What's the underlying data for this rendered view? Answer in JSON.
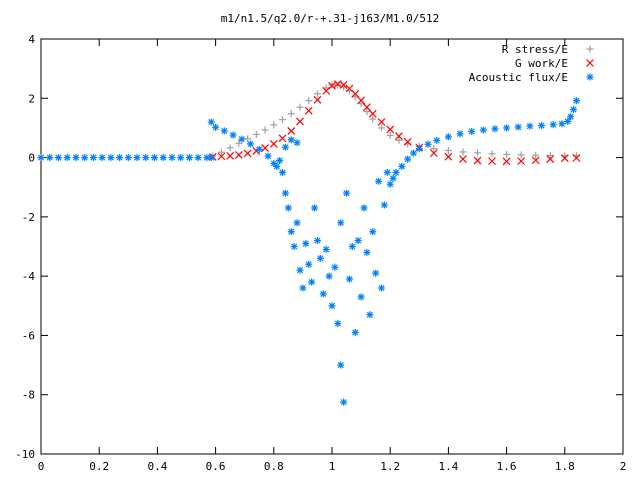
{
  "chart_data": {
    "type": "scatter",
    "title": "m1/n1.5/q2.0/r-+.31-j163/M1.0/512",
    "xlabel": "",
    "ylabel": "",
    "xlim": [
      0,
      2
    ],
    "ylim": [
      -10,
      4
    ],
    "x_ticks": [
      "0",
      "0.2",
      "0.4",
      "0.6",
      "0.8",
      "1",
      "1.2",
      "1.4",
      "1.6",
      "1.8",
      "2"
    ],
    "y_ticks": [
      "4",
      "2",
      "0",
      "-2",
      "-4",
      "-6",
      "-8",
      "-10"
    ],
    "grid": false,
    "legend_position": "top-right",
    "series": [
      {
        "name": "R stress/E",
        "marker": "+",
        "color": "#a0a0a0",
        "points": [
          [
            0.59,
            0.05
          ],
          [
            0.62,
            0.18
          ],
          [
            0.65,
            0.33
          ],
          [
            0.68,
            0.48
          ],
          [
            0.71,
            0.63
          ],
          [
            0.74,
            0.78
          ],
          [
            0.77,
            0.93
          ],
          [
            0.8,
            1.1
          ],
          [
            0.83,
            1.28
          ],
          [
            0.86,
            1.48
          ],
          [
            0.89,
            1.7
          ],
          [
            0.92,
            1.92
          ],
          [
            0.95,
            2.15
          ],
          [
            0.98,
            2.35
          ],
          [
            1.0,
            2.45
          ],
          [
            1.02,
            2.45
          ],
          [
            1.04,
            2.38
          ],
          [
            1.06,
            2.25
          ],
          [
            1.08,
            2.05
          ],
          [
            1.1,
            1.82
          ],
          [
            1.12,
            1.55
          ],
          [
            1.14,
            1.3
          ],
          [
            1.17,
            1.0
          ],
          [
            1.2,
            0.75
          ],
          [
            1.23,
            0.58
          ],
          [
            1.26,
            0.46
          ],
          [
            1.3,
            0.38
          ],
          [
            1.35,
            0.3
          ],
          [
            1.4,
            0.24
          ],
          [
            1.45,
            0.19
          ],
          [
            1.5,
            0.16
          ],
          [
            1.55,
            0.13
          ],
          [
            1.6,
            0.11
          ],
          [
            1.65,
            0.09
          ],
          [
            1.7,
            0.08
          ],
          [
            1.75,
            0.07
          ],
          [
            1.8,
            0.06
          ],
          [
            1.84,
            0.06
          ]
        ]
      },
      {
        "name": "G work/E",
        "marker": "x",
        "color": "#ff0000",
        "points": [
          [
            0.59,
            0.02
          ],
          [
            0.62,
            0.04
          ],
          [
            0.65,
            0.06
          ],
          [
            0.68,
            0.09
          ],
          [
            0.71,
            0.14
          ],
          [
            0.74,
            0.22
          ],
          [
            0.77,
            0.32
          ],
          [
            0.8,
            0.46
          ],
          [
            0.83,
            0.65
          ],
          [
            0.86,
            0.9
          ],
          [
            0.89,
            1.22
          ],
          [
            0.92,
            1.58
          ],
          [
            0.95,
            1.95
          ],
          [
            0.98,
            2.25
          ],
          [
            1.0,
            2.42
          ],
          [
            1.02,
            2.48
          ],
          [
            1.04,
            2.45
          ],
          [
            1.06,
            2.33
          ],
          [
            1.08,
            2.15
          ],
          [
            1.1,
            1.93
          ],
          [
            1.12,
            1.7
          ],
          [
            1.14,
            1.48
          ],
          [
            1.17,
            1.2
          ],
          [
            1.2,
            0.95
          ],
          [
            1.23,
            0.72
          ],
          [
            1.26,
            0.53
          ],
          [
            1.3,
            0.34
          ],
          [
            1.35,
            0.15
          ],
          [
            1.4,
            0.03
          ],
          [
            1.45,
            -0.05
          ],
          [
            1.5,
            -0.1
          ],
          [
            1.55,
            -0.12
          ],
          [
            1.6,
            -0.13
          ],
          [
            1.65,
            -0.12
          ],
          [
            1.7,
            -0.09
          ],
          [
            1.75,
            -0.05
          ],
          [
            1.8,
            -0.02
          ],
          [
            1.84,
            -0.01
          ]
        ]
      },
      {
        "name": "Acoustic flux/E",
        "marker": "*",
        "color": "#0080ff",
        "points": [
          [
            0.0,
            0.0
          ],
          [
            0.03,
            0.0
          ],
          [
            0.06,
            0.0
          ],
          [
            0.09,
            0.0
          ],
          [
            0.12,
            0.0
          ],
          [
            0.15,
            0.0
          ],
          [
            0.18,
            0.0
          ],
          [
            0.21,
            0.0
          ],
          [
            0.24,
            0.0
          ],
          [
            0.27,
            0.0
          ],
          [
            0.3,
            0.0
          ],
          [
            0.33,
            0.0
          ],
          [
            0.36,
            0.0
          ],
          [
            0.39,
            0.0
          ],
          [
            0.42,
            0.0
          ],
          [
            0.45,
            0.0
          ],
          [
            0.48,
            0.0
          ],
          [
            0.51,
            0.0
          ],
          [
            0.54,
            0.0
          ],
          [
            0.57,
            0.0
          ],
          [
            0.585,
            0.0
          ],
          [
            0.585,
            1.2
          ],
          [
            0.6,
            1.02
          ],
          [
            0.63,
            0.9
          ],
          [
            0.66,
            0.76
          ],
          [
            0.69,
            0.62
          ],
          [
            0.72,
            0.46
          ],
          [
            0.75,
            0.28
          ],
          [
            0.78,
            0.05
          ],
          [
            0.8,
            -0.2
          ],
          [
            0.81,
            -0.3
          ],
          [
            0.82,
            -0.1
          ],
          [
            0.84,
            0.35
          ],
          [
            0.86,
            0.6
          ],
          [
            0.88,
            0.5
          ],
          [
            0.83,
            -0.5
          ],
          [
            0.84,
            -1.2
          ],
          [
            0.85,
            -1.7
          ],
          [
            0.86,
            -2.5
          ],
          [
            0.87,
            -3.0
          ],
          [
            0.88,
            -2.2
          ],
          [
            0.89,
            -3.8
          ],
          [
            0.9,
            -4.4
          ],
          [
            0.91,
            -2.9
          ],
          [
            0.92,
            -3.6
          ],
          [
            0.93,
            -4.2
          ],
          [
            0.94,
            -1.7
          ],
          [
            0.95,
            -2.8
          ],
          [
            0.96,
            -3.4
          ],
          [
            0.97,
            -4.6
          ],
          [
            0.98,
            -3.1
          ],
          [
            0.99,
            -4.0
          ],
          [
            1.0,
            -5.0
          ],
          [
            1.01,
            -3.7
          ],
          [
            1.02,
            -5.6
          ],
          [
            1.03,
            -2.2
          ],
          [
            1.03,
            -7.0
          ],
          [
            1.04,
            -8.25
          ],
          [
            1.05,
            -1.2
          ],
          [
            1.06,
            -4.1
          ],
          [
            1.07,
            -3.0
          ],
          [
            1.08,
            -5.9
          ],
          [
            1.09,
            -2.8
          ],
          [
            1.1,
            -4.7
          ],
          [
            1.11,
            -1.7
          ],
          [
            1.12,
            -3.2
          ],
          [
            1.13,
            -5.3
          ],
          [
            1.14,
            -2.5
          ],
          [
            1.15,
            -3.9
          ],
          [
            1.16,
            -0.8
          ],
          [
            1.17,
            -4.4
          ],
          [
            1.18,
            -1.6
          ],
          [
            1.19,
            -0.5
          ],
          [
            1.2,
            -0.9
          ],
          [
            1.21,
            -0.7
          ],
          [
            1.22,
            -0.5
          ],
          [
            1.24,
            -0.3
          ],
          [
            1.26,
            -0.05
          ],
          [
            1.28,
            0.15
          ],
          [
            1.3,
            0.3
          ],
          [
            1.33,
            0.45
          ],
          [
            1.36,
            0.58
          ],
          [
            1.4,
            0.7
          ],
          [
            1.44,
            0.8
          ],
          [
            1.48,
            0.88
          ],
          [
            1.52,
            0.93
          ],
          [
            1.56,
            0.97
          ],
          [
            1.6,
            1.0
          ],
          [
            1.64,
            1.03
          ],
          [
            1.68,
            1.06
          ],
          [
            1.72,
            1.08
          ],
          [
            1.76,
            1.11
          ],
          [
            1.79,
            1.14
          ],
          [
            1.81,
            1.22
          ],
          [
            1.82,
            1.38
          ],
          [
            1.83,
            1.62
          ],
          [
            1.84,
            1.92
          ]
        ]
      }
    ]
  }
}
